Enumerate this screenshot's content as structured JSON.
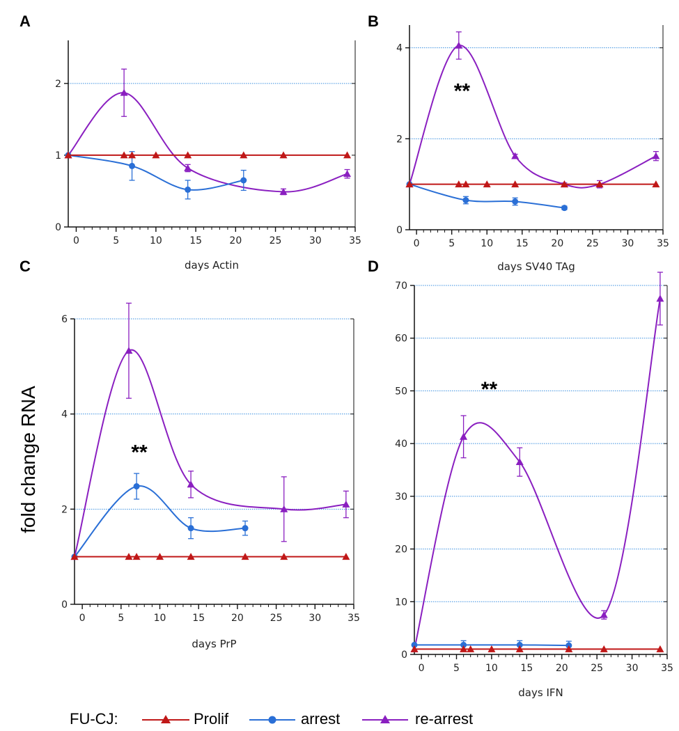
{
  "figure": {
    "ylabel": "fold change RNA",
    "legend": {
      "prefix": "FU-CJ:",
      "entries": [
        {
          "name": "Prolif",
          "color": "#c01818",
          "marker": "triangle"
        },
        {
          "name": "arrest",
          "color": "#2a6fd6",
          "marker": "circle"
        },
        {
          "name": "re-arrest",
          "color": "#8a1fc0",
          "marker": "triangle"
        }
      ]
    }
  },
  "chart_data": [
    {
      "type": "line",
      "panel": "A",
      "xlabel": "days Actin",
      "xlim": [
        -1,
        35
      ],
      "ylim": [
        0,
        2.6
      ],
      "xticks": [
        0,
        5,
        10,
        15,
        20,
        25,
        30,
        35
      ],
      "yticks": [
        0,
        1,
        2
      ],
      "grid_y": [
        2
      ],
      "series": [
        {
          "name": "Prolif",
          "x": [
            -1,
            6,
            7,
            10,
            14,
            21,
            26,
            34
          ],
          "y": [
            1,
            1,
            1,
            1,
            1,
            1,
            1,
            1
          ]
        },
        {
          "name": "arrest",
          "x": [
            -1,
            7,
            14,
            21
          ],
          "y": [
            1,
            0.85,
            0.52,
            0.65
          ],
          "err": [
            0,
            0.2,
            0.13,
            0.14
          ]
        },
        {
          "name": "re-arrest",
          "x": [
            -1,
            6,
            14,
            26,
            34
          ],
          "y": [
            1,
            1.87,
            0.82,
            0.49,
            0.74
          ],
          "err": [
            0,
            0.33,
            0.05,
            0.04,
            0.06
          ]
        }
      ],
      "annotations": []
    },
    {
      "type": "line",
      "panel": "B",
      "xlabel": "days SV40 TAg",
      "xlim": [
        -1,
        35
      ],
      "ylim": [
        0,
        4.5
      ],
      "xticks": [
        0,
        5,
        10,
        15,
        20,
        25,
        30,
        35
      ],
      "yticks": [
        0,
        2,
        4
      ],
      "grid_y": [
        2,
        4
      ],
      "series": [
        {
          "name": "Prolif",
          "x": [
            -1,
            6,
            7,
            10,
            14,
            21,
            26,
            34
          ],
          "y": [
            1,
            1,
            1,
            1,
            1,
            1,
            1,
            1
          ]
        },
        {
          "name": "arrest",
          "x": [
            -1,
            7,
            14,
            21
          ],
          "y": [
            1,
            0.65,
            0.62,
            0.48
          ],
          "err": [
            0,
            0.08,
            0.08,
            0.04
          ]
        },
        {
          "name": "re-arrest",
          "x": [
            -1,
            6,
            14,
            21,
            26,
            34
          ],
          "y": [
            1,
            4.05,
            1.62,
            1.0,
            1.0,
            1.62
          ],
          "err": [
            0,
            0.3,
            0.04,
            0.03,
            0.08,
            0.1
          ]
        }
      ],
      "annotations": [
        {
          "text": "**",
          "x": 5.3,
          "y": 2.9
        }
      ]
    },
    {
      "type": "line",
      "panel": "C",
      "xlabel": "days PrP",
      "xlim": [
        -1,
        35
      ],
      "ylim": [
        0,
        6
      ],
      "xticks": [
        0,
        5,
        10,
        15,
        20,
        25,
        30,
        35
      ],
      "yticks": [
        0,
        2,
        4,
        6
      ],
      "grid_y": [
        2,
        4,
        6
      ],
      "series": [
        {
          "name": "Prolif",
          "x": [
            -1,
            6,
            7,
            10,
            14,
            21,
            26,
            34
          ],
          "y": [
            1,
            1,
            1,
            1,
            1,
            1,
            1,
            1
          ]
        },
        {
          "name": "arrest",
          "x": [
            -1,
            7,
            14,
            21
          ],
          "y": [
            1,
            2.48,
            1.6,
            1.6
          ],
          "err": [
            0,
            0.27,
            0.22,
            0.15
          ]
        },
        {
          "name": "re-arrest",
          "x": [
            -1,
            6,
            14,
            26,
            34
          ],
          "y": [
            1,
            5.33,
            2.52,
            2.0,
            2.1
          ],
          "err": [
            0,
            1.0,
            0.28,
            0.68,
            0.28
          ]
        }
      ],
      "annotations": [
        {
          "text": "**",
          "x": 6.3,
          "y": 3.05
        }
      ]
    },
    {
      "type": "line",
      "panel": "D",
      "xlabel": "days IFN",
      "xlim": [
        -1,
        35
      ],
      "ylim": [
        0,
        70
      ],
      "xticks": [
        0,
        5,
        10,
        15,
        20,
        25,
        30,
        35
      ],
      "yticks": [
        0,
        10,
        20,
        30,
        40,
        50,
        60,
        70
      ],
      "grid_y": [
        10,
        20,
        30,
        40,
        50,
        60,
        70
      ],
      "series": [
        {
          "name": "Prolif",
          "x": [
            -1,
            6,
            7,
            10,
            14,
            21,
            26,
            34
          ],
          "y": [
            1,
            1,
            1,
            1,
            1,
            1,
            1,
            1
          ]
        },
        {
          "name": "arrest",
          "x": [
            -1,
            6,
            14,
            21
          ],
          "y": [
            1.8,
            1.8,
            1.8,
            1.7
          ],
          "err": [
            0,
            0.8,
            0.8,
            0.8
          ]
        },
        {
          "name": "re-arrest",
          "x": [
            -1,
            6,
            14,
            26,
            34
          ],
          "y": [
            1,
            41.3,
            36.5,
            7.5,
            67.5
          ],
          "err": [
            0,
            4.0,
            2.7,
            0.8,
            5.0
          ]
        }
      ],
      "annotations": [
        {
          "text": "**",
          "x": 8.5,
          "y": 49
        }
      ]
    }
  ]
}
